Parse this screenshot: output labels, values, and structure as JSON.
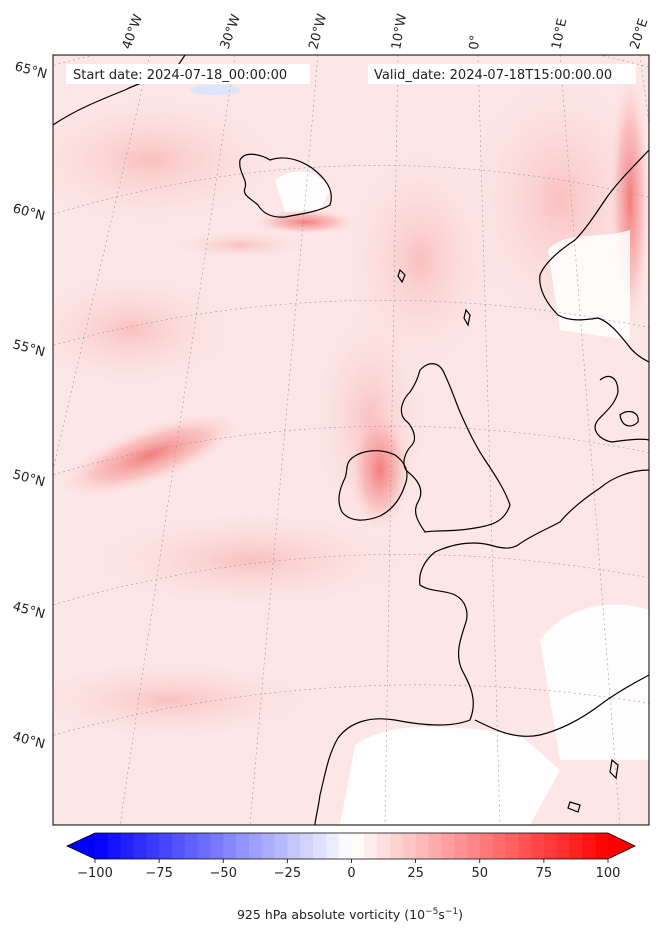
{
  "header": {
    "start_date": "Start date: 2024-07-18_00:00:00",
    "valid_date": "Valid_date: 2024-07-18T15:00:00.00"
  },
  "map": {
    "lon_labels": [
      "40°W",
      "30°W",
      "20°W",
      "10°W",
      "0°",
      "10°E",
      "20°E"
    ],
    "lat_labels": [
      "65°N",
      "60°N",
      "55°N",
      "50°N",
      "45°N",
      "40°N"
    ]
  },
  "colorbar": {
    "ticks": [
      "−100",
      "−75",
      "−50",
      "−25",
      "0",
      "25",
      "50",
      "75",
      "100"
    ],
    "tick_values": [
      -100,
      -75,
      -50,
      -25,
      0,
      25,
      50,
      75,
      100
    ],
    "range": [
      -100,
      100
    ],
    "label_main": "925 hPa absolute vorticity (10",
    "label_exp1": "−5",
    "label_mid": "s",
    "label_exp2": "−1",
    "label_end": ")",
    "colors": {
      "min": "#0000ff",
      "mid": "#ffffff",
      "max": "#ff0000"
    }
  }
}
